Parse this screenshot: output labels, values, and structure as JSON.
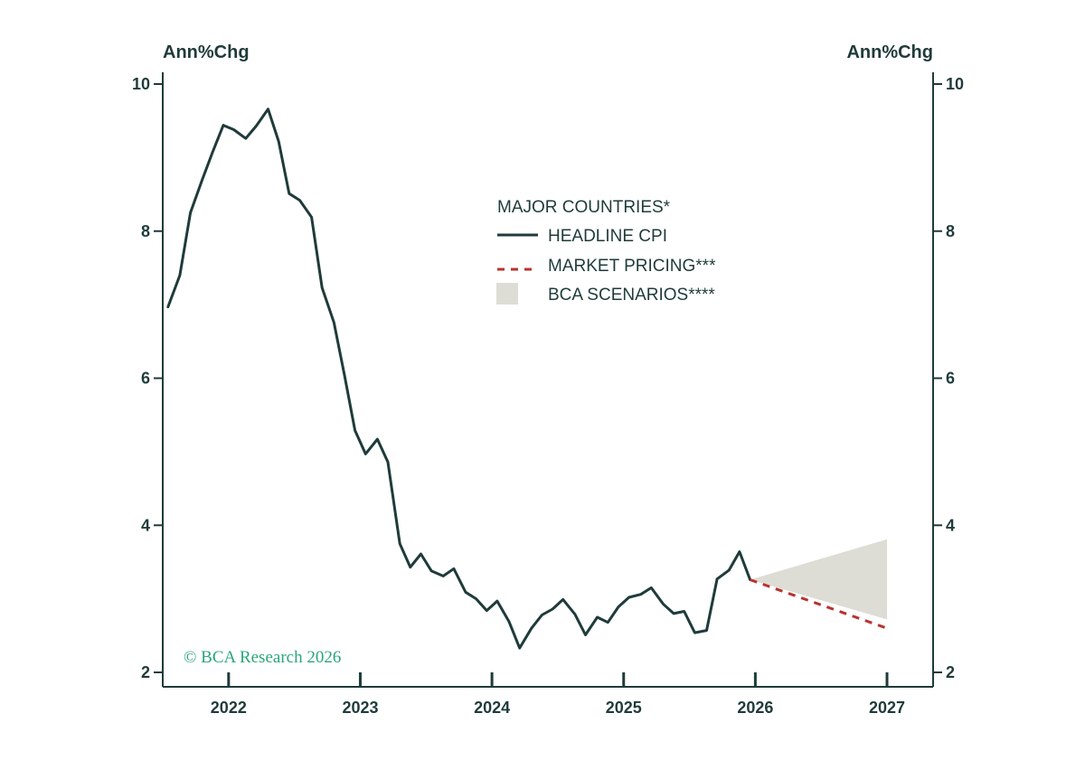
{
  "chart_data": {
    "type": "line",
    "left_axis_label": "Ann%Chg",
    "right_axis_label": "Ann%Chg",
    "ylim": [
      2,
      10
    ],
    "y_ticks": [
      {
        "value": 2,
        "label": "2"
      },
      {
        "value": 4,
        "label": "4"
      },
      {
        "value": 6,
        "label": "6"
      },
      {
        "value": 8,
        "label": "8"
      },
      {
        "value": 10,
        "label": "10"
      }
    ],
    "xlim": [
      2021.5,
      2027.35
    ],
    "x_ticks": [
      2022.0,
      2023.0,
      2024.0,
      2025.0,
      2026.0,
      2027.0
    ],
    "x_labels": [
      {
        "x": 2022.0,
        "label": "2022"
      },
      {
        "x": 2023.0,
        "label": "2023"
      },
      {
        "x": 2024.0,
        "label": "2024"
      },
      {
        "x": 2025.0,
        "label": "2025"
      },
      {
        "x": 2026.0,
        "label": "2026"
      },
      {
        "x": 2027.0,
        "label": "2027"
      }
    ],
    "legend_title": "MAJOR COUNTRIES*",
    "series": [
      {
        "name": "HEADLINE CPI",
        "color": "#1f3b3a",
        "style": "solid",
        "points": [
          [
            2021.54,
            6.97
          ],
          [
            2021.63,
            7.4
          ],
          [
            2021.71,
            8.25
          ],
          [
            2021.8,
            8.7
          ],
          [
            2021.88,
            9.08
          ],
          [
            2021.96,
            9.44
          ],
          [
            2022.04,
            9.38
          ],
          [
            2022.13,
            9.26
          ],
          [
            2022.21,
            9.43
          ],
          [
            2022.3,
            9.66
          ],
          [
            2022.38,
            9.22
          ],
          [
            2022.46,
            8.51
          ],
          [
            2022.54,
            8.42
          ],
          [
            2022.63,
            8.19
          ],
          [
            2022.71,
            7.23
          ],
          [
            2022.8,
            6.76
          ],
          [
            2022.88,
            6.04
          ],
          [
            2022.96,
            5.29
          ],
          [
            2023.04,
            4.97
          ],
          [
            2023.13,
            5.17
          ],
          [
            2023.21,
            4.86
          ],
          [
            2023.3,
            3.75
          ],
          [
            2023.38,
            3.43
          ],
          [
            2023.46,
            3.61
          ],
          [
            2023.54,
            3.38
          ],
          [
            2023.63,
            3.31
          ],
          [
            2023.71,
            3.41
          ],
          [
            2023.8,
            3.09
          ],
          [
            2023.88,
            3.0
          ],
          [
            2023.96,
            2.84
          ],
          [
            2024.04,
            2.97
          ],
          [
            2024.13,
            2.69
          ],
          [
            2024.21,
            2.33
          ],
          [
            2024.3,
            2.6
          ],
          [
            2024.38,
            2.78
          ],
          [
            2024.46,
            2.86
          ],
          [
            2024.54,
            2.99
          ],
          [
            2024.63,
            2.79
          ],
          [
            2024.71,
            2.51
          ],
          [
            2024.8,
            2.75
          ],
          [
            2024.88,
            2.68
          ],
          [
            2024.96,
            2.89
          ],
          [
            2025.04,
            3.02
          ],
          [
            2025.13,
            3.06
          ],
          [
            2025.21,
            3.15
          ],
          [
            2025.3,
            2.93
          ],
          [
            2025.38,
            2.8
          ],
          [
            2025.46,
            2.83
          ],
          [
            2025.54,
            2.54
          ],
          [
            2025.63,
            2.57
          ],
          [
            2025.71,
            3.27
          ],
          [
            2025.8,
            3.39
          ],
          [
            2025.88,
            3.64
          ],
          [
            2025.96,
            3.26
          ]
        ]
      },
      {
        "name": "MARKET PRICING***",
        "color": "#b8332e",
        "style": "dashed",
        "points": [
          [
            2025.96,
            3.26
          ],
          [
            2027.0,
            2.6
          ]
        ]
      }
    ],
    "band": {
      "name": "BCA SCENARIOS****",
      "color": "#deddd5",
      "upper": [
        [
          2025.96,
          3.26
        ],
        [
          2027.0,
          3.81
        ]
      ],
      "lower": [
        [
          2025.96,
          3.26
        ],
        [
          2027.0,
          2.72
        ]
      ]
    },
    "grid": false,
    "legend_position": "upper-center",
    "credit": "© BCA Research 2026"
  }
}
